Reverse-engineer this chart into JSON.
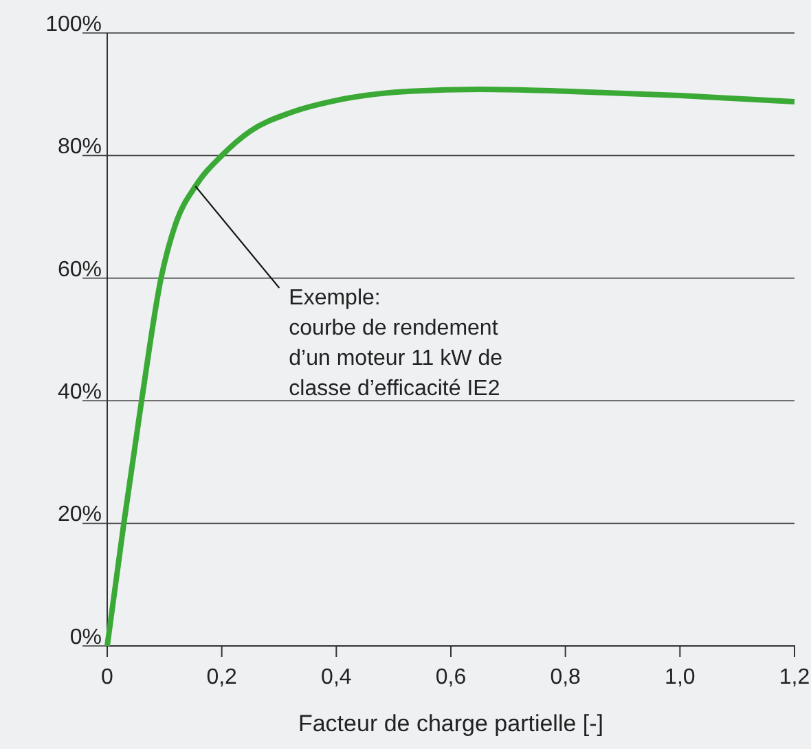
{
  "chart_data": {
    "type": "line",
    "xlabel": "Facteur de charge partielle [-]",
    "x": [
      0,
      0.029,
      0.06,
      0.094,
      0.12,
      0.154,
      0.2,
      0.25,
      0.32,
      0.4,
      0.53,
      0.65,
      0.8,
      1.0,
      1.2
    ],
    "series": [
      {
        "color": "#3aa935",
        "values": [
          0,
          20,
          40,
          60,
          69,
          75,
          80,
          84,
          87,
          89,
          90.5,
          90.8,
          90.5,
          89.8,
          88.8
        ]
      }
    ],
    "xlim": [
      0,
      1.2
    ],
    "xticks": [
      {
        "value": 0,
        "label": "0"
      },
      {
        "value": 0.2,
        "label": "0,2"
      },
      {
        "value": 0.4,
        "label": "0,4"
      },
      {
        "value": 0.6,
        "label": "0,6"
      },
      {
        "value": 0.8,
        "label": "0,8"
      },
      {
        "value": 1,
        "label": "1,0"
      },
      {
        "value": 1.2,
        "label": "1,2"
      }
    ],
    "ylim": [
      0,
      100
    ],
    "yticks": [
      {
        "value": 0,
        "label": "0%"
      },
      {
        "value": 20,
        "label": "20%"
      },
      {
        "value": 40,
        "label": "40%"
      },
      {
        "value": 60,
        "label": "60%"
      },
      {
        "value": 80,
        "label": "80%"
      },
      {
        "value": 100,
        "label": "100%"
      }
    ],
    "grid": "y",
    "marker": "none",
    "line_style": "solid",
    "annotations": [
      {
        "text": "Exemple:\ncourbe de rendement\nd’un moteur 11 kW de\nclasse d’efficacité IE2",
        "x": 0.154,
        "y": 75
      }
    ]
  }
}
